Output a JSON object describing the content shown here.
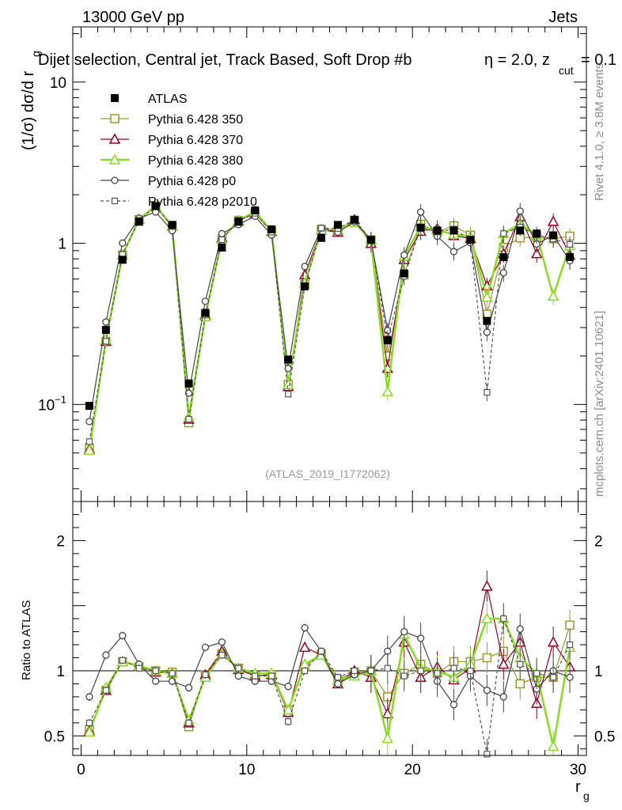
{
  "header": {
    "left": "13000 GeV pp",
    "right": "Jets",
    "title": "Dijet selection, Central jet, Track Based, Soft Drop #b",
    "title_cut": "η = 2.0, z",
    "title_sub": "cut",
    "title_val": " = 0.1",
    "analysis": "(ATLAS_2019_I1772062)",
    "rivet": "Rivet 4.1.0, ≥ 3.8M events",
    "mcplots": "mcplots.cern.ch [arXiv:2401.10621]"
  },
  "chart_data": {
    "type": "line",
    "main": {
      "ylabel": "(1/σ) dσ/d r",
      "ylabel_sub": "g",
      "yscale": "log",
      "ylim": [
        0.025,
        22
      ],
      "yticks": [
        {
          "v": 0.1,
          "b": "10",
          "e": "−1"
        },
        {
          "v": 1,
          "b": "1",
          "e": ""
        },
        {
          "v": 10,
          "b": "10",
          "e": ""
        }
      ]
    },
    "ratio": {
      "ylabel": "Ratio to ATLAS",
      "ylim": [
        0.35,
        2.3
      ],
      "yticks": [
        {
          "v": 0.5,
          "label": "0.5"
        },
        {
          "v": 1,
          "label": "1"
        },
        {
          "v": 2,
          "label": "2"
        }
      ]
    },
    "xlabel": "r",
    "xlabel_sub": "g",
    "xlim": [
      -0.5,
      30.5
    ],
    "xticks": [
      {
        "v": 0,
        "label": "0"
      },
      {
        "v": 10,
        "label": "10"
      },
      {
        "v": 20,
        "label": "20"
      },
      {
        "v": 30,
        "label": "30"
      }
    ],
    "x": [
      0.5,
      1.5,
      2.5,
      3.5,
      4.5,
      5.5,
      6.5,
      7.5,
      8.5,
      9.5,
      10.5,
      11.5,
      12.5,
      13.5,
      14.5,
      15.5,
      16.5,
      17.5,
      18.5,
      19.5,
      20.5,
      21.5,
      22.5,
      23.5,
      24.5,
      25.5,
      26.5,
      27.5,
      28.5,
      29.5
    ],
    "data": {
      "name": "ATLAS",
      "color": "#000000",
      "values": [
        0.098,
        0.29,
        0.79,
        1.36,
        1.7,
        1.3,
        0.135,
        0.37,
        0.94,
        1.36,
        1.6,
        1.22,
        0.19,
        0.54,
        1.08,
        1.3,
        1.4,
        1.05,
        0.25,
        0.65,
        1.25,
        1.2,
        1.2,
        1.05,
        0.33,
        0.82,
        1.2,
        1.15,
        1.12,
        0.82
      ]
    },
    "series": [
      {
        "name": "Pythia 6.428 350",
        "color": "#999933",
        "marker": "square",
        "dashed": false,
        "width": 1.2,
        "ratio": [
          0.55,
          0.85,
          1.07,
          1.03,
          1.0,
          0.99,
          0.57,
          0.97,
          1.13,
          1.02,
          0.96,
          0.97,
          0.7,
          1.03,
          1.13,
          0.93,
          0.99,
          1.0,
          0.8,
          0.98,
          1.05,
          0.98,
          1.07,
          1.07,
          1.1,
          1.15,
          0.9,
          0.95,
          0.95,
          1.35
        ]
      },
      {
        "name": "Pythia 6.428 370",
        "color": "#990022",
        "marker": "triangle",
        "dashed": false,
        "width": 1.2,
        "ratio": [
          0.54,
          0.85,
          1.07,
          1.04,
          0.99,
          0.98,
          0.6,
          0.97,
          1.15,
          1.01,
          0.96,
          0.97,
          0.68,
          1.18,
          1.12,
          0.9,
          1.0,
          0.95,
          0.67,
          1.22,
          0.95,
          1.03,
          0.93,
          1.02,
          1.65,
          1.05,
          1.22,
          0.75,
          1.22,
          1.03
        ]
      },
      {
        "name": "Pythia 6.428 380",
        "color": "#88dd22",
        "marker": "triangle",
        "dashed": false,
        "width": 2.5,
        "ratio": [
          0.53,
          0.87,
          1.07,
          1.04,
          1.0,
          0.98,
          0.62,
          0.95,
          1.13,
          1.02,
          0.98,
          0.98,
          0.7,
          1.05,
          1.12,
          0.93,
          0.96,
          1.0,
          0.48,
          1.28,
          1.02,
          1.0,
          0.95,
          1.05,
          1.4,
          1.4,
          1.1,
          0.98,
          0.42,
          1.18
        ]
      },
      {
        "name": "Pythia 6.428 p0",
        "color": "#444444",
        "marker": "circle",
        "dashed": false,
        "width": 1.2,
        "ratio": [
          0.8,
          1.12,
          1.27,
          1.05,
          0.92,
          0.92,
          0.87,
          1.18,
          1.22,
          0.96,
          0.92,
          0.92,
          0.88,
          1.33,
          1.15,
          0.9,
          0.97,
          1.0,
          1.15,
          1.3,
          1.25,
          0.92,
          0.74,
          0.96,
          0.85,
          0.8,
          1.32,
          0.86,
          1.0,
          0.95
        ]
      },
      {
        "name": "Pythia 6.428 p2010",
        "color": "#555555",
        "marker": "opensquare",
        "dashed": true,
        "width": 1.2,
        "ratio": [
          0.6,
          0.85,
          1.08,
          1.02,
          1.0,
          0.98,
          0.6,
          0.97,
          1.12,
          1.02,
          0.96,
          0.96,
          0.61,
          1.0,
          1.15,
          0.95,
          1.0,
          1.0,
          1.02,
          0.96,
          1.0,
          0.98,
          1.02,
          1.0,
          0.36,
          1.4,
          1.05,
          0.98,
          0.95,
          1.2
        ]
      }
    ]
  }
}
